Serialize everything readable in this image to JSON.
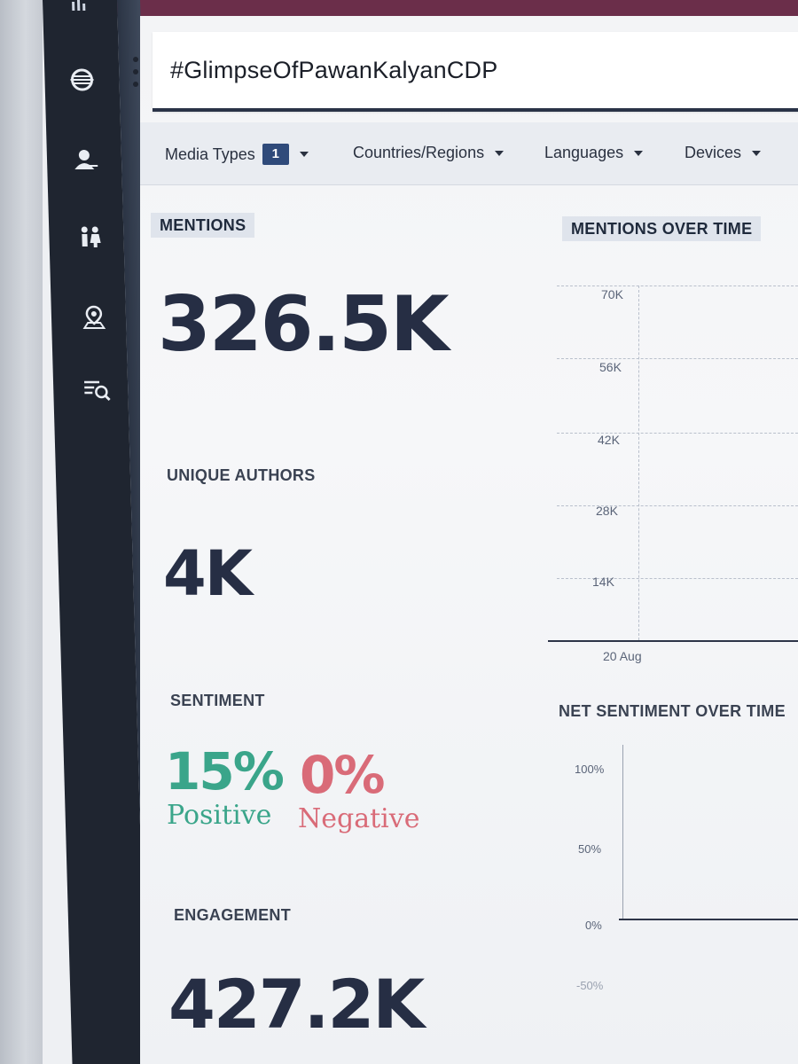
{
  "app": {
    "accent": "#6b2e4a",
    "sidebar_color": "#1f2530"
  },
  "sidebar": {
    "items": [
      {
        "icon": "bar-chart-icon"
      },
      {
        "icon": "globe-icon"
      },
      {
        "icon": "user-icon"
      },
      {
        "icon": "users-icon"
      },
      {
        "icon": "map-pin-icon"
      },
      {
        "icon": "list-search-icon"
      }
    ]
  },
  "search": {
    "query": "#GlimpseOfPawanKalyanCDP"
  },
  "filters": {
    "media_types": {
      "label": "Media Types",
      "count": "1"
    },
    "countries": {
      "label": "Countries/Regions"
    },
    "languages": {
      "label": "Languages"
    },
    "devices": {
      "label": "Devices"
    }
  },
  "metrics": {
    "mentions": {
      "label": "MENTIONS",
      "value": "326.5K"
    },
    "unique_authors": {
      "label": "UNIQUE AUTHORS",
      "value": "4K"
    },
    "sentiment": {
      "label": "SENTIMENT",
      "positive_value": "15%",
      "positive_label": "Positive",
      "negative_value": "0%",
      "negative_label": "Negative",
      "positive_color": "#3aa58a",
      "negative_color": "#d96b78"
    },
    "engagement": {
      "label": "ENGAGEMENT",
      "value": "427.2K"
    }
  },
  "charts": {
    "mentions_over_time": {
      "title": "MENTIONS OVER TIME"
    },
    "net_sentiment_over_time": {
      "title": "NET SENTIMENT OVER TIME"
    }
  },
  "chart_data": [
    {
      "type": "line",
      "title": "MENTIONS OVER TIME",
      "yticks": [
        "70K",
        "56K",
        "42K",
        "28K",
        "14K"
      ],
      "xticks": [
        "20 Aug"
      ],
      "ylim": [
        0,
        70000
      ]
    },
    {
      "type": "line",
      "title": "NET SENTIMENT OVER TIME",
      "yticks": [
        "100%",
        "50%",
        "0%",
        "-50%"
      ],
      "ylim": [
        -50,
        100
      ]
    }
  ]
}
